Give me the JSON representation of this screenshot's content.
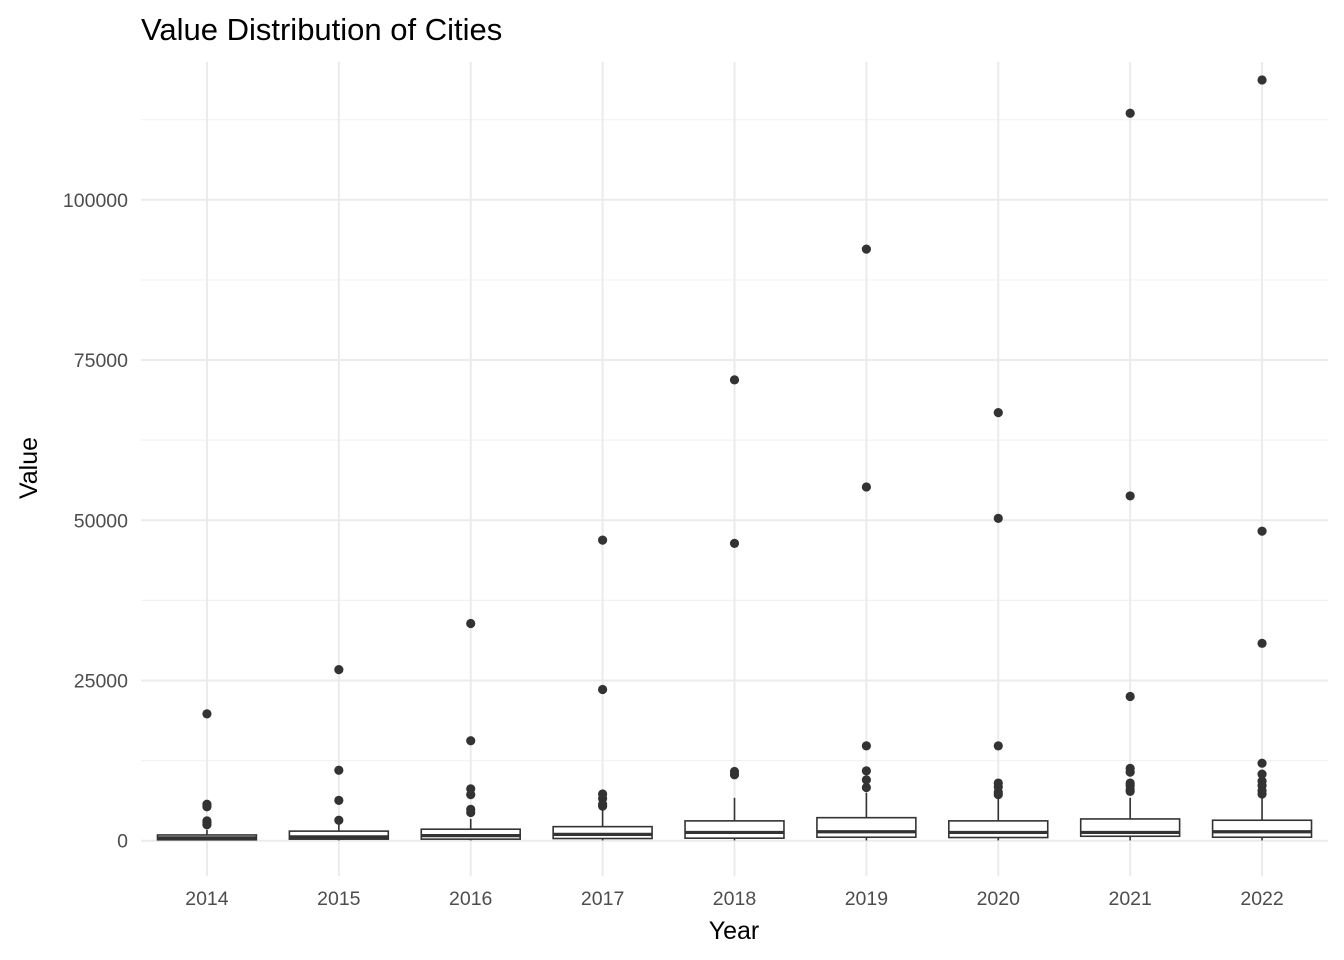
{
  "chart_data": {
    "type": "box",
    "title": "Value Distribution of Cities",
    "xlabel": "Year",
    "ylabel": "Value",
    "ylim": [
      -5500,
      121500
    ],
    "yticks": [
      0,
      25000,
      50000,
      75000,
      100000
    ],
    "ytick_labels": [
      "0",
      "25000",
      "50000",
      "75000",
      "100000"
    ],
    "grid": true,
    "categories": [
      "2014",
      "2015",
      "2016",
      "2017",
      "2018",
      "2019",
      "2020",
      "2021",
      "2022"
    ],
    "boxes": [
      {
        "category": "2014",
        "whisker_low": 50,
        "q1": 150,
        "median": 450,
        "q3": 900,
        "whisker_high": 1700,
        "outliers": [
          19800,
          5700,
          5300,
          3100,
          2800,
          2500
        ]
      },
      {
        "category": "2015",
        "whisker_low": 50,
        "q1": 250,
        "median": 600,
        "q3": 1500,
        "whisker_high": 2600,
        "outliers": [
          26700,
          11000,
          6300,
          3200
        ]
      },
      {
        "category": "2016",
        "whisker_low": 50,
        "q1": 250,
        "median": 800,
        "q3": 1800,
        "whisker_high": 3400,
        "outliers": [
          33900,
          15600,
          8100,
          7200,
          4900,
          4400
        ]
      },
      {
        "category": "2017",
        "whisker_low": 50,
        "q1": 350,
        "median": 1000,
        "q3": 2200,
        "whisker_high": 5000,
        "outliers": [
          46900,
          23600,
          7300,
          6600,
          5700,
          5400
        ]
      },
      {
        "category": "2018",
        "whisker_low": 50,
        "q1": 400,
        "median": 1300,
        "q3": 3100,
        "whisker_high": 6700,
        "outliers": [
          71900,
          46400,
          10800,
          10300
        ]
      },
      {
        "category": "2019",
        "whisker_low": 50,
        "q1": 550,
        "median": 1400,
        "q3": 3600,
        "whisker_high": 7500,
        "outliers": [
          92300,
          55200,
          14800,
          10900,
          9500,
          8300
        ]
      },
      {
        "category": "2020",
        "whisker_low": 50,
        "q1": 500,
        "median": 1300,
        "q3": 3100,
        "whisker_high": 7000,
        "outliers": [
          66800,
          50300,
          14800,
          9000,
          8400,
          7600,
          7200
        ]
      },
      {
        "category": "2021",
        "whisker_low": 50,
        "q1": 700,
        "median": 1300,
        "q3": 3400,
        "whisker_high": 6700,
        "outliers": [
          113500,
          53800,
          22500,
          11300,
          10700,
          9000,
          8600,
          8000,
          7700
        ]
      },
      {
        "category": "2022",
        "whisker_low": 50,
        "q1": 550,
        "median": 1400,
        "q3": 3200,
        "whisker_high": 6800,
        "outliers": [
          118700,
          48300,
          30800,
          12100,
          10400,
          9300,
          8600,
          7800,
          7300
        ]
      }
    ]
  }
}
